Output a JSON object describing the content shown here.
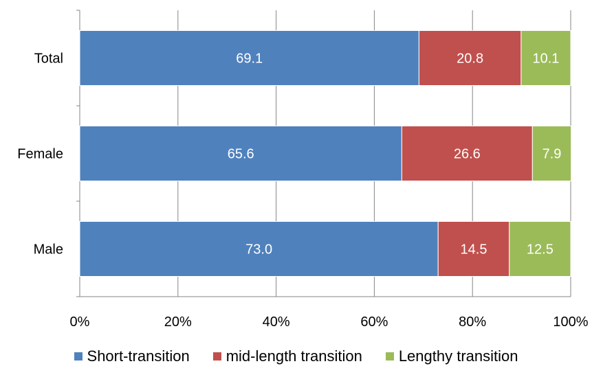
{
  "chart_data": {
    "type": "bar",
    "orientation": "horizontal",
    "stacked": true,
    "categories": [
      "Total",
      "Female",
      "Male"
    ],
    "series": [
      {
        "name": "Short-transition",
        "values": [
          69.1,
          65.6,
          73.0
        ],
        "labels": [
          "69.1",
          "65.6",
          "73.0"
        ],
        "color": "#4F81BD"
      },
      {
        "name": "mid-length transition",
        "values": [
          20.8,
          26.6,
          14.5
        ],
        "labels": [
          "20.8",
          "26.6",
          "14.5"
        ],
        "color": "#C0504D"
      },
      {
        "name": "Lengthy transition",
        "values": [
          10.1,
          7.9,
          12.5
        ],
        "labels": [
          "10.1",
          "7.9",
          "12.5"
        ],
        "color": "#9BBB59"
      }
    ],
    "xlim": [
      0,
      100
    ],
    "xticks": [
      0,
      20,
      40,
      60,
      80,
      100
    ],
    "xtick_labels": [
      "0%",
      "20%",
      "40%",
      "60%",
      "80%",
      "100%"
    ],
    "grid": true,
    "legend": "bottom",
    "title": "",
    "xlabel": "",
    "ylabel": ""
  }
}
